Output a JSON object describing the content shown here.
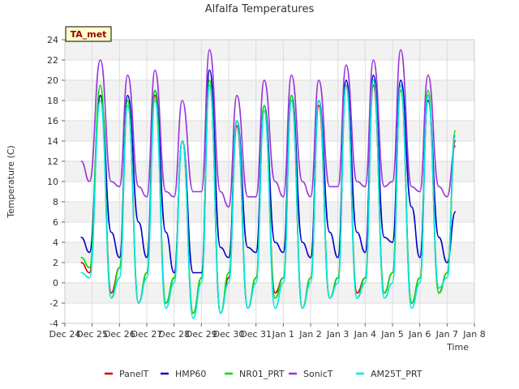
{
  "chart_data": {
    "type": "line",
    "title": "Alfalfa Temperatures",
    "xlabel": "Time",
    "ylabel": "Temperature (C)",
    "site_badge": "TA_met",
    "xlim": [
      0,
      15
    ],
    "ylim": [
      -4,
      24
    ],
    "x_tick_labels": [
      "Dec 24",
      "Dec 25",
      "Dec 26",
      "Dec 27",
      "Dec 28",
      "Dec 29",
      "Dec 30",
      "Dec 31",
      "Jan 1",
      "Jan 2",
      "Jan 3",
      "Jan 4",
      "Jan 5",
      "Jan 6",
      "Jan 7",
      "Jan 8"
    ],
    "y_ticks": [
      -4,
      -2,
      0,
      2,
      4,
      6,
      8,
      10,
      12,
      14,
      16,
      18,
      20,
      22,
      24
    ],
    "grid": true,
    "legend_position": "bottom",
    "series": [
      {
        "name": "PanelT",
        "color": "#cc0000",
        "x": [
          0.6,
          0.9,
          1.3,
          1.7,
          2.0,
          2.3,
          2.7,
          3.0,
          3.3,
          3.7,
          4.0,
          4.3,
          4.7,
          5.0,
          5.3,
          5.7,
          6.0,
          6.3,
          6.7,
          7.0,
          7.3,
          7.7,
          8.0,
          8.3,
          8.7,
          9.0,
          9.3,
          9.7,
          10.0,
          10.3,
          10.7,
          11.0,
          11.3,
          11.7,
          12.0,
          12.3,
          12.7,
          13.0,
          13.3,
          13.7,
          14.0,
          14.3
        ],
        "y": [
          2.0,
          1.0,
          18.5,
          -1.0,
          1.5,
          17.5,
          -2.0,
          1.0,
          18.5,
          -2.0,
          0.5,
          14.0,
          -3.0,
          0.5,
          19.5,
          -3.0,
          0.5,
          15.5,
          -2.5,
          0.5,
          17.0,
          -1.0,
          0.5,
          18.0,
          -2.5,
          0.5,
          17.5,
          -1.5,
          0.5,
          19.5,
          -1.0,
          0.5,
          19.5,
          -1.0,
          1.0,
          19.5,
          -2.0,
          0.5,
          18.5,
          -1.0,
          1.0,
          14.0
        ]
      },
      {
        "name": "HMP60",
        "color": "#0000cc",
        "x": [
          0.6,
          0.9,
          1.3,
          1.7,
          2.0,
          2.3,
          2.7,
          3.0,
          3.3,
          3.7,
          4.0,
          4.3,
          4.7,
          5.0,
          5.3,
          5.7,
          6.0,
          6.3,
          6.7,
          7.0,
          7.3,
          7.7,
          8.0,
          8.3,
          8.7,
          9.0,
          9.3,
          9.7,
          10.0,
          10.3,
          10.7,
          11.0,
          11.3,
          11.7,
          12.0,
          12.3,
          12.7,
          13.0,
          13.3,
          13.7,
          14.0,
          14.3
        ],
        "y": [
          4.5,
          3.0,
          18.5,
          5.0,
          2.5,
          18.5,
          6.0,
          2.5,
          19.0,
          5.0,
          1.0,
          14.0,
          1.0,
          1.0,
          21.0,
          3.5,
          2.5,
          16.0,
          3.5,
          3.0,
          17.5,
          4.0,
          3.0,
          18.5,
          4.0,
          2.5,
          18.0,
          5.0,
          2.5,
          20.0,
          5.0,
          3.0,
          20.5,
          4.5,
          4.0,
          20.0,
          7.5,
          2.5,
          18.0,
          4.5,
          2.0,
          7.0
        ]
      },
      {
        "name": "NR01_PRT",
        "color": "#00dd00",
        "x": [
          0.6,
          0.9,
          1.3,
          1.7,
          2.0,
          2.3,
          2.7,
          3.0,
          3.3,
          3.7,
          4.0,
          4.3,
          4.7,
          5.0,
          5.3,
          5.7,
          6.0,
          6.3,
          6.7,
          7.0,
          7.3,
          7.7,
          8.0,
          8.3,
          8.7,
          9.0,
          9.3,
          9.7,
          10.0,
          10.3,
          10.7,
          11.0,
          11.3,
          11.7,
          12.0,
          12.3,
          12.7,
          13.0,
          13.3,
          13.7,
          14.0,
          14.3
        ],
        "y": [
          2.5,
          1.5,
          19.5,
          -1.5,
          1.5,
          18.0,
          -2.0,
          1.0,
          19.0,
          -2.0,
          0.5,
          14.0,
          -3.0,
          0.5,
          20.0,
          -3.0,
          1.0,
          16.0,
          -2.5,
          0.5,
          17.5,
          -1.5,
          0.5,
          18.5,
          -2.5,
          0.5,
          18.0,
          -1.5,
          0.5,
          19.5,
          -1.5,
          0.5,
          20.0,
          -1.0,
          1.0,
          19.0,
          -2.0,
          0.5,
          19.0,
          -1.0,
          1.0,
          15.0
        ]
      },
      {
        "name": "SonicT",
        "color": "#9933dd",
        "x": [
          0.6,
          0.9,
          1.3,
          1.7,
          2.0,
          2.3,
          2.7,
          3.0,
          3.3,
          3.7,
          4.0,
          4.3,
          4.7,
          5.0,
          5.3,
          5.7,
          6.0,
          6.3,
          6.7,
          7.0,
          7.3,
          7.7,
          8.0,
          8.3,
          8.7,
          9.0,
          9.3,
          9.7,
          10.0,
          10.3,
          10.7,
          11.0,
          11.3,
          11.7,
          12.0,
          12.3,
          12.7,
          13.0,
          13.3,
          13.7,
          14.0,
          14.3
        ],
        "y": [
          12.0,
          10.0,
          22.0,
          10.0,
          9.5,
          20.5,
          9.5,
          8.5,
          21.0,
          9.0,
          8.5,
          18.0,
          9.0,
          9.0,
          23.0,
          9.0,
          7.5,
          18.5,
          8.5,
          8.5,
          20.0,
          10.0,
          8.5,
          20.5,
          10.0,
          8.5,
          20.0,
          9.5,
          9.5,
          21.5,
          10.0,
          9.5,
          22.0,
          9.5,
          10.0,
          23.0,
          9.5,
          9.0,
          20.5,
          9.5,
          8.5,
          13.5
        ]
      },
      {
        "name": "AM25T_PRT",
        "color": "#00e6e6",
        "x": [
          0.6,
          0.9,
          1.3,
          1.7,
          2.0,
          2.3,
          2.7,
          3.0,
          3.3,
          3.7,
          4.0,
          4.3,
          4.7,
          5.0,
          5.3,
          5.7,
          6.0,
          6.3,
          6.7,
          7.0,
          7.3,
          7.7,
          8.0,
          8.3,
          8.7,
          9.0,
          9.3,
          9.7,
          10.0,
          10.3,
          10.7,
          11.0,
          11.3,
          11.7,
          12.0,
          12.3,
          12.7,
          13.0,
          13.3,
          13.7,
          14.0,
          14.3
        ],
        "y": [
          1.0,
          0.5,
          18.0,
          -1.5,
          0.5,
          17.5,
          -2.0,
          0.5,
          18.0,
          -2.5,
          0.0,
          14.0,
          -3.5,
          0.0,
          19.5,
          -3.0,
          0.0,
          16.0,
          -2.5,
          0.0,
          17.0,
          -2.5,
          0.0,
          18.0,
          -2.5,
          0.0,
          18.0,
          -1.5,
          0.0,
          19.5,
          -1.5,
          0.0,
          20.0,
          -1.5,
          0.0,
          19.5,
          -2.5,
          0.0,
          18.5,
          -0.5,
          0.5,
          14.5
        ]
      }
    ]
  }
}
